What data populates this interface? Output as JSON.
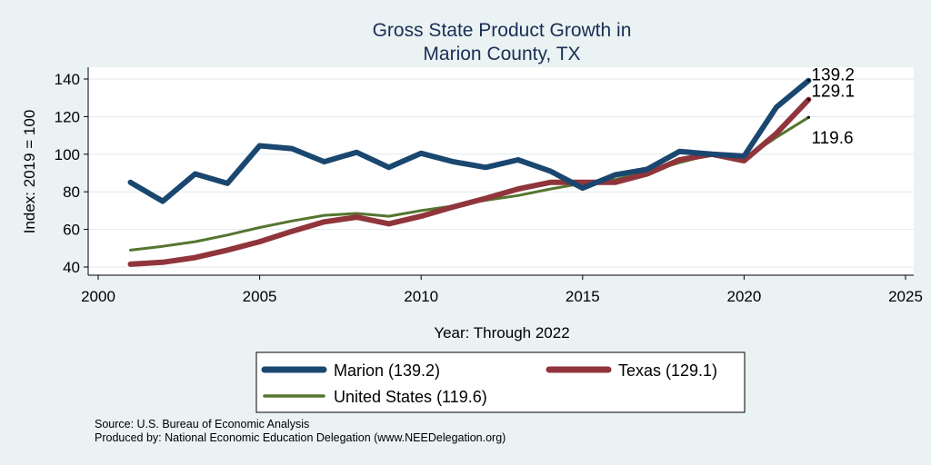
{
  "chart_data": {
    "type": "line",
    "title": [
      "Gross State Product Growth in",
      "Marion County, TX"
    ],
    "xlabel": "Year: Through 2022",
    "ylabel": "Index: 2019 = 100",
    "xlim": [
      2000,
      2025
    ],
    "ylim": [
      40,
      140
    ],
    "xticks": [
      2000,
      2005,
      2010,
      2015,
      2020,
      2025
    ],
    "yticks": [
      40,
      60,
      80,
      100,
      120,
      140
    ],
    "grid": true,
    "x": [
      2001,
      2002,
      2003,
      2004,
      2005,
      2006,
      2007,
      2008,
      2009,
      2010,
      2011,
      2012,
      2013,
      2014,
      2015,
      2016,
      2017,
      2018,
      2019,
      2020,
      2021,
      2022
    ],
    "series": [
      {
        "name": "Marion",
        "legend_label": "Marion  (139.2)",
        "end_label": "139.2",
        "color": "#1a476f",
        "values": [
          85,
          75,
          89.5,
          84.5,
          104.5,
          103,
          96,
          101,
          93,
          100.5,
          96,
          93,
          97,
          91,
          82,
          89,
          92,
          101.5,
          100,
          99,
          125,
          139.2
        ]
      },
      {
        "name": "Texas",
        "legend_label": "Texas (129.1)",
        "end_label": "129.1",
        "color": "#90353b",
        "values": [
          41.5,
          42.5,
          45,
          49,
          53.5,
          59,
          64,
          66.5,
          63,
          67,
          72,
          76.5,
          81.5,
          85,
          85,
          85,
          89.5,
          97,
          100,
          96.5,
          111,
          129.1
        ]
      },
      {
        "name": "United States",
        "legend_label": "United States (119.6)",
        "end_label": "119.6",
        "color": "#55752f",
        "values": [
          49,
          51,
          53.5,
          57,
          61,
          64.5,
          67.5,
          68.5,
          67,
          70,
          72.5,
          75.5,
          78,
          81.5,
          84.5,
          86.5,
          90.5,
          95.5,
          100,
          97.5,
          109,
          119.6
        ]
      }
    ],
    "legend_position": "bottom",
    "source": "Source: U.S. Bureau of Economic Analysis",
    "produced_by": "Produced by: National Economic Education Delegation (www.NEEDelegation.org)"
  }
}
